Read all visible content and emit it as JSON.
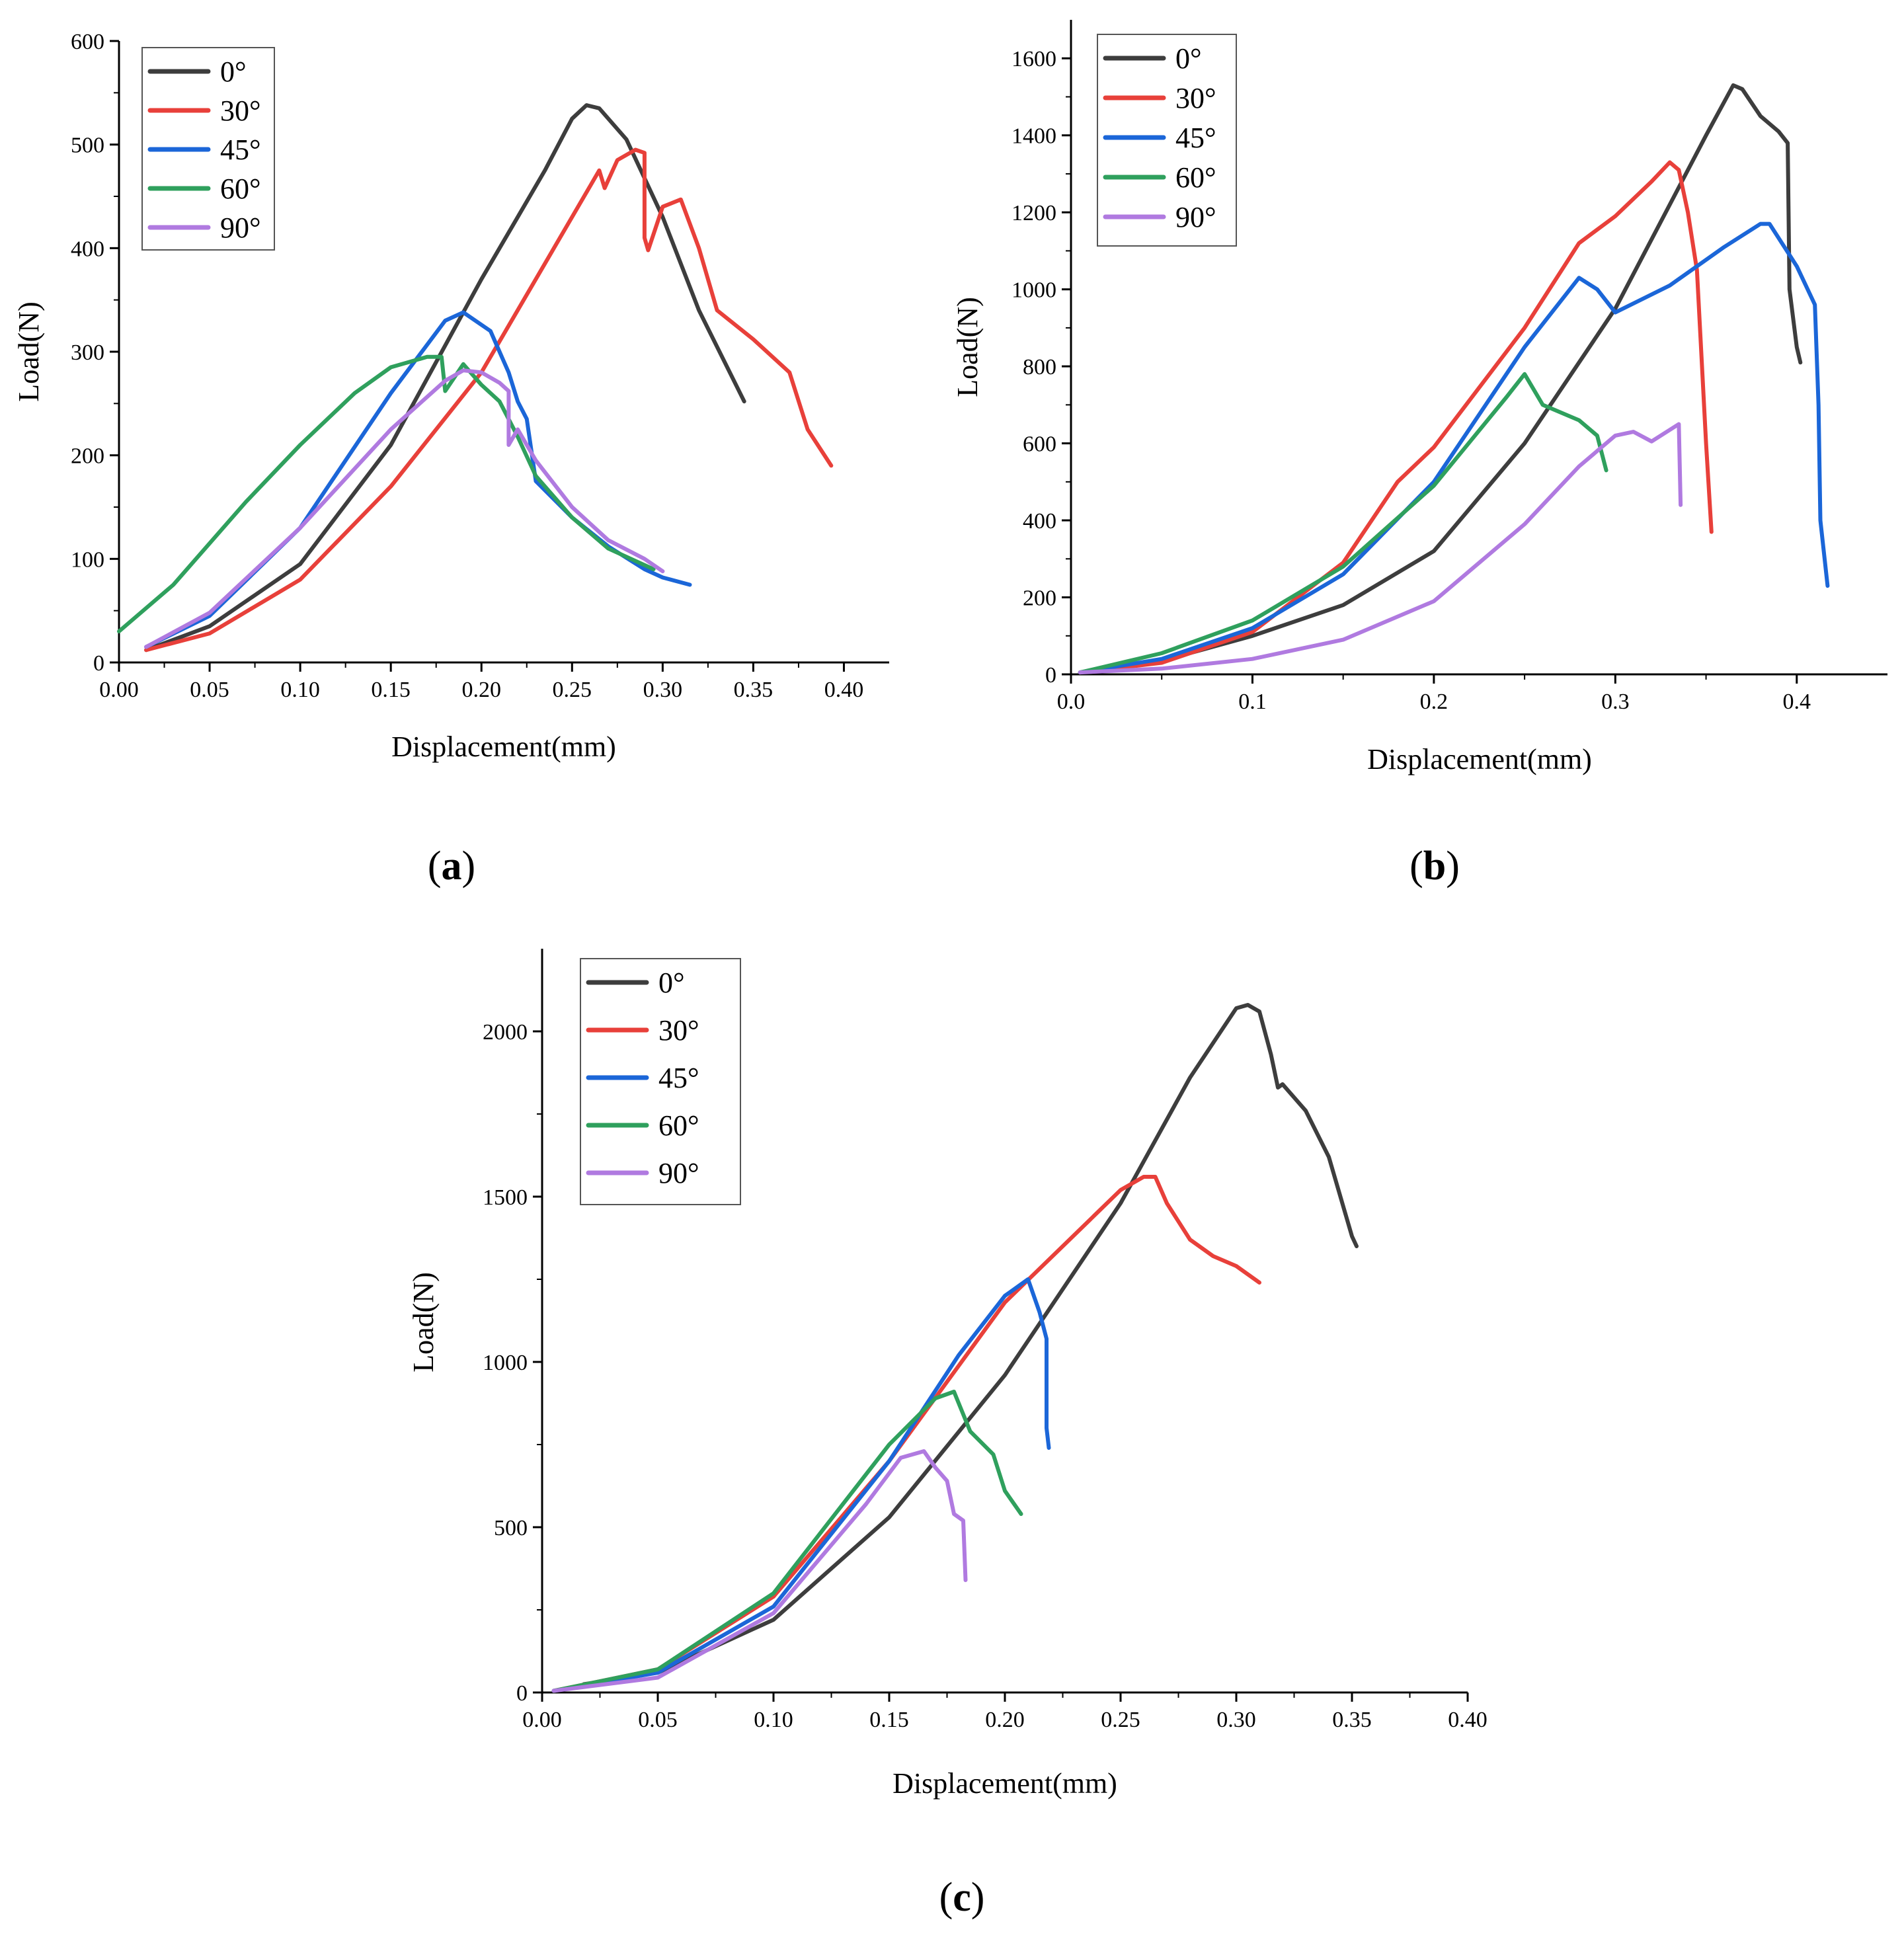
{
  "chart_data": [
    {
      "type": "line",
      "panel_label": "a",
      "xlabel": "Displacement(mm)",
      "ylabel": "Load(N)",
      "xlim": [
        0,
        0.425
      ],
      "ylim": [
        0,
        600
      ],
      "xticks": [
        "0.00",
        "0.05",
        "0.10",
        "0.15",
        "0.20",
        "0.25",
        "0.30",
        "0.35",
        "0.40"
      ],
      "yticks": [
        "0",
        "100",
        "200",
        "300",
        "400",
        "500",
        "600"
      ],
      "legend_position": "top-left",
      "series": [
        {
          "name": "0°",
          "color": "#3d3d3d",
          "x": [
            0.015,
            0.05,
            0.1,
            0.15,
            0.2,
            0.22,
            0.235,
            0.25,
            0.258,
            0.265,
            0.28,
            0.3,
            0.32,
            0.345
          ],
          "y": [
            12,
            35,
            95,
            210,
            370,
            430,
            475,
            525,
            538,
            535,
            505,
            430,
            340,
            252
          ]
        },
        {
          "name": "30°",
          "color": "#e8403a",
          "x": [
            0.015,
            0.05,
            0.1,
            0.15,
            0.2,
            0.24,
            0.265,
            0.268,
            0.275,
            0.285,
            0.29,
            0.29,
            0.292,
            0.3,
            0.31,
            0.32,
            0.33,
            0.35,
            0.37,
            0.38,
            0.393
          ],
          "y": [
            12,
            28,
            80,
            170,
            280,
            400,
            475,
            458,
            485,
            495,
            492,
            410,
            398,
            440,
            447,
            400,
            340,
            312,
            280,
            225,
            190
          ]
        },
        {
          "name": "45°",
          "color": "#1b66d8",
          "x": [
            0.015,
            0.05,
            0.1,
            0.15,
            0.18,
            0.19,
            0.205,
            0.21,
            0.215,
            0.22,
            0.225,
            0.23,
            0.25,
            0.27,
            0.29,
            0.3,
            0.315
          ],
          "y": [
            15,
            45,
            130,
            260,
            330,
            338,
            320,
            300,
            280,
            252,
            235,
            175,
            140,
            112,
            90,
            82,
            75
          ]
        },
        {
          "name": "60°",
          "color": "#2fa05d",
          "x": [
            0,
            0.03,
            0.07,
            0.1,
            0.13,
            0.15,
            0.17,
            0.178,
            0.18,
            0.19,
            0.2,
            0.21,
            0.22,
            0.23,
            0.25,
            0.27,
            0.295
          ],
          "y": [
            30,
            75,
            155,
            210,
            260,
            285,
            295,
            295,
            262,
            288,
            268,
            252,
            218,
            180,
            140,
            110,
            90
          ]
        },
        {
          "name": "90°",
          "color": "#b07ae0",
          "x": [
            0.015,
            0.05,
            0.1,
            0.15,
            0.18,
            0.19,
            0.2,
            0.21,
            0.215,
            0.215,
            0.22,
            0.23,
            0.25,
            0.27,
            0.29,
            0.3
          ],
          "y": [
            15,
            48,
            130,
            225,
            272,
            282,
            280,
            270,
            262,
            210,
            225,
            195,
            150,
            118,
            100,
            88
          ]
        }
      ]
    },
    {
      "type": "line",
      "panel_label": "b",
      "xlabel": "Displacement(mm)",
      "ylabel": "Load(N)",
      "xlim": [
        0,
        0.45
      ],
      "ylim": [
        0,
        1700
      ],
      "xticks": [
        "0.0",
        "0.1",
        "0.2",
        "0.3",
        "0.4"
      ],
      "yticks": [
        "0",
        "200",
        "400",
        "600",
        "800",
        "1000",
        "1200",
        "1400",
        "1600"
      ],
      "legend_position": "top-left",
      "series": [
        {
          "name": "0°",
          "color": "#3d3d3d",
          "x": [
            0.005,
            0.05,
            0.1,
            0.15,
            0.2,
            0.25,
            0.3,
            0.35,
            0.365,
            0.37,
            0.38,
            0.39,
            0.395,
            0.396,
            0.4,
            0.402
          ],
          "y": [
            5,
            35,
            100,
            180,
            320,
            600,
            950,
            1400,
            1530,
            1520,
            1450,
            1410,
            1380,
            1000,
            850,
            810
          ]
        },
        {
          "name": "30°",
          "color": "#e8403a",
          "x": [
            0.005,
            0.05,
            0.1,
            0.15,
            0.18,
            0.2,
            0.25,
            0.28,
            0.3,
            0.32,
            0.33,
            0.335,
            0.34,
            0.345,
            0.35,
            0.353
          ],
          "y": [
            5,
            30,
            110,
            290,
            500,
            590,
            900,
            1120,
            1190,
            1280,
            1330,
            1310,
            1200,
            1050,
            600,
            370
          ]
        },
        {
          "name": "45°",
          "color": "#1b66d8",
          "x": [
            0.005,
            0.05,
            0.1,
            0.15,
            0.2,
            0.25,
            0.28,
            0.29,
            0.3,
            0.33,
            0.36,
            0.38,
            0.385,
            0.4,
            0.41,
            0.412,
            0.413,
            0.417
          ],
          "y": [
            5,
            40,
            120,
            260,
            500,
            850,
            1030,
            1000,
            940,
            1010,
            1110,
            1170,
            1170,
            1060,
            960,
            700,
            400,
            230
          ]
        },
        {
          "name": "60°",
          "color": "#2fa05d",
          "x": [
            0.005,
            0.05,
            0.1,
            0.15,
            0.2,
            0.24,
            0.25,
            0.26,
            0.27,
            0.28,
            0.29,
            0.295
          ],
          "y": [
            5,
            55,
            140,
            280,
            490,
            720,
            780,
            700,
            680,
            660,
            620,
            530
          ]
        },
        {
          "name": "90°",
          "color": "#b07ae0",
          "x": [
            0.005,
            0.05,
            0.1,
            0.15,
            0.2,
            0.25,
            0.28,
            0.3,
            0.31,
            0.32,
            0.335,
            0.336
          ],
          "y": [
            5,
            15,
            40,
            90,
            190,
            390,
            540,
            620,
            630,
            605,
            650,
            440
          ]
        }
      ]
    },
    {
      "type": "line",
      "panel_label": "c",
      "xlabel": "Displacement(mm)",
      "ylabel": "Load(N)",
      "xlim": [
        0,
        0.4
      ],
      "ylim": [
        0,
        2250
      ],
      "xticks": [
        "0.00",
        "0.05",
        "0.10",
        "0.15",
        "0.20",
        "0.25",
        "0.30",
        "0.35",
        "0.40"
      ],
      "yticks": [
        "0",
        "500",
        "1000",
        "1500",
        "2000"
      ],
      "legend_position": "top-left",
      "series": [
        {
          "name": "0°",
          "color": "#3d3d3d",
          "x": [
            0.018,
            0.05,
            0.1,
            0.15,
            0.2,
            0.25,
            0.28,
            0.3,
            0.305,
            0.31,
            0.315,
            0.318,
            0.32,
            0.33,
            0.34,
            0.345,
            0.35,
            0.352
          ],
          "y": [
            25,
            60,
            220,
            530,
            960,
            1480,
            1860,
            2070,
            2080,
            2060,
            1930,
            1830,
            1840,
            1760,
            1620,
            1500,
            1380,
            1350
          ]
        },
        {
          "name": "30°",
          "color": "#e8403a",
          "x": [
            0.005,
            0.05,
            0.1,
            0.15,
            0.2,
            0.25,
            0.26,
            0.265,
            0.27,
            0.28,
            0.29,
            0.3,
            0.31
          ],
          "y": [
            5,
            70,
            290,
            700,
            1180,
            1520,
            1560,
            1560,
            1480,
            1370,
            1320,
            1290,
            1240
          ]
        },
        {
          "name": "45°",
          "color": "#1b66d8",
          "x": [
            0.005,
            0.05,
            0.1,
            0.15,
            0.18,
            0.2,
            0.21,
            0.215,
            0.218,
            0.218,
            0.219
          ],
          "y": [
            5,
            60,
            260,
            700,
            1020,
            1200,
            1250,
            1150,
            1070,
            800,
            740
          ]
        },
        {
          "name": "60°",
          "color": "#2fa05d",
          "x": [
            0.005,
            0.05,
            0.1,
            0.15,
            0.17,
            0.178,
            0.185,
            0.195,
            0.2,
            0.207
          ],
          "y": [
            5,
            70,
            300,
            750,
            890,
            910,
            790,
            720,
            610,
            540
          ]
        },
        {
          "name": "90°",
          "color": "#b07ae0",
          "x": [
            0.005,
            0.05,
            0.1,
            0.14,
            0.155,
            0.165,
            0.17,
            0.175,
            0.178,
            0.18,
            0.182,
            0.183
          ],
          "y": [
            5,
            45,
            240,
            570,
            710,
            730,
            680,
            640,
            540,
            530,
            520,
            340
          ]
        }
      ]
    }
  ]
}
